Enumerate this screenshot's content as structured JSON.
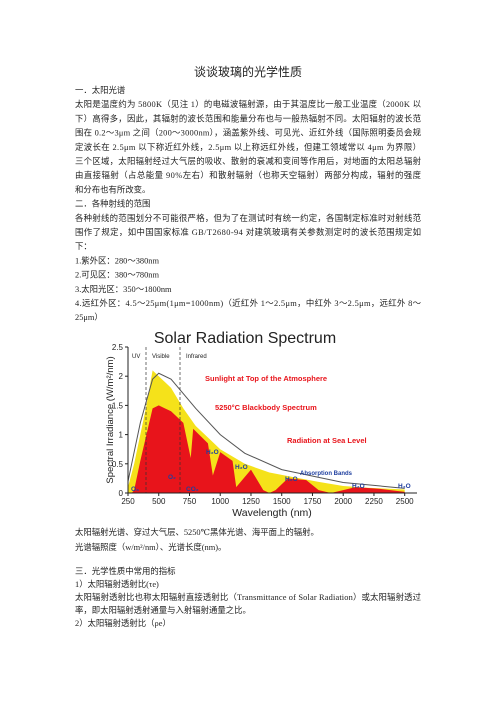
{
  "title": "谈谈玻璃的光学性质",
  "section_1": {
    "heading": "一．太阳光谱",
    "lines": [
      "太阳是温度约为 5800K（见注 1）的电磁波辐射源，由于其温度比一般工业温度（2000K 以",
      "下）高得多，因此，其辐射的波长范围和能量分布也与一般热辐射不同。太阳辐射的波长范",
      "围在 0.2～3μm 之间（200～3000nm），涵盖紫外线、可见光、近红外线（国际照明委员会规",
      "定波长在 2.5μm 以下称近红外线，2.5μm 以上称远红外线，但建工领域常以 4μm 为界限）",
      "三个区域，太阳辐射经过大气层的吸收、散射的衰减和变间等作用后，对地面的太阳总辐射",
      "由直接辐射（占总能量 90%左右）和散射辐射（也称天空辐射）两部分构成，辐射的强度",
      "和分布也有所改变。"
    ]
  },
  "section_2": {
    "heading": "二．各种射线的范围",
    "lines": [
      "各种射线的范围划分不可能很严格，但为了在测试时有统一约定，各国制定标准时对射线范",
      "围作了规定，如中国国家标准 GB/T2680-94 对建筑玻璃有关参数测定时的波长范围规定如",
      "下：",
      "1.紫外区：280～380nm",
      "2.可见区：380～780nm",
      "3.太阳光区：350～1800nm",
      "4.远红外区：4.5～25μm(1μm=1000nm)（近红外 1～2.5μm，中红外 3～2.5μm，远红外 8～",
      "25μm）"
    ]
  },
  "chart_data": {
    "type": "area",
    "title": "Solar Radiation Spectrum",
    "x_label": "Wavelength (nm)",
    "y_label": "Spectral Irradiance (W/m²/nm)",
    "xlim": [
      250,
      2600
    ],
    "xticks": [
      250,
      500,
      750,
      1000,
      1250,
      1500,
      1750,
      2000,
      2250,
      2500
    ],
    "ylim": [
      0,
      2.5
    ],
    "yticks": [
      0,
      0.5,
      1,
      1.5,
      2,
      2.5
    ],
    "regions": [
      "UV",
      "Visible",
      "Infrared"
    ],
    "series": [
      {
        "name": "Sunlight at Top of the Atmosphere",
        "color": "#f5e21a",
        "style": "area",
        "x": [
          250,
          300,
          350,
          400,
          450,
          500,
          550,
          600,
          700,
          800,
          900,
          1000,
          1200,
          1400,
          1600,
          1800,
          2000,
          2200,
          2500
        ],
        "values": [
          0.1,
          0.5,
          1.0,
          1.5,
          2.1,
          2.0,
          1.9,
          1.8,
          1.45,
          1.15,
          0.95,
          0.75,
          0.5,
          0.35,
          0.27,
          0.19,
          0.12,
          0.09,
          0.06
        ]
      },
      {
        "name": "Radiation at Sea Level",
        "color": "#e8141b",
        "style": "area",
        "x": [
          280,
          300,
          350,
          400,
          450,
          500,
          550,
          600,
          700,
          760,
          780,
          900,
          940,
          1000,
          1100,
          1130,
          1250,
          1350,
          1400,
          1450,
          1550,
          1700,
          1800,
          1900,
          2000,
          2100,
          2300,
          2500
        ],
        "values": [
          0,
          0.05,
          0.55,
          1.0,
          1.45,
          1.5,
          1.45,
          1.4,
          1.2,
          0.6,
          1.1,
          0.85,
          0.3,
          0.7,
          0.55,
          0.1,
          0.4,
          0.05,
          0,
          0.05,
          0.25,
          0.22,
          0.05,
          0,
          0.05,
          0.1,
          0.07,
          0.02
        ]
      },
      {
        "name": "5250°C Blackbody Spectrum",
        "color": "#555555",
        "style": "line",
        "x": [
          250,
          350,
          450,
          500,
          600,
          700,
          800,
          1000,
          1200,
          1500,
          2000,
          2500
        ],
        "values": [
          0.2,
          1.2,
          1.95,
          2.05,
          1.95,
          1.7,
          1.45,
          1.0,
          0.68,
          0.4,
          0.18,
          0.08
        ]
      }
    ],
    "label_color": "#e8141b",
    "annotations": [
      {
        "text": "Absorption Bands",
        "color": "#1f3f9f"
      },
      {
        "text": "H₂O",
        "color": "#1f3f9f"
      },
      {
        "text": "H₂O",
        "color": "#1f3f9f"
      },
      {
        "text": "H₂O",
        "color": "#1f3f9f"
      },
      {
        "text": "H₂O",
        "color": "#1f3f9f"
      },
      {
        "text": "H₂O",
        "color": "#1f3f9f"
      },
      {
        "text": "O₂",
        "color": "#1f3f9f"
      },
      {
        "text": "O₃",
        "color": "#1f3f9f"
      },
      {
        "text": "CO₂",
        "color": "#1f3f9f"
      }
    ]
  },
  "caption": [
    "太阳辐射光谱、穿过大气层、5250℃黑体光谱、海平面上的辐射。",
    "光谱辐照度（w/m²/nm）、光谱长度(nm)。"
  ],
  "section_3": {
    "heading": "三．光学性质中常用的指标",
    "lines": [
      "1）太阳辐射透射比(τe)",
      "太阳辐射透射比也称太阳辐射直接透射比（Transmittance of Solar Radiation）或太阳辐射透过",
      "率，即太阳辐射透射通量与入射辐射通量之比。",
      "2）太阳辐射透射比（ρe）"
    ]
  }
}
